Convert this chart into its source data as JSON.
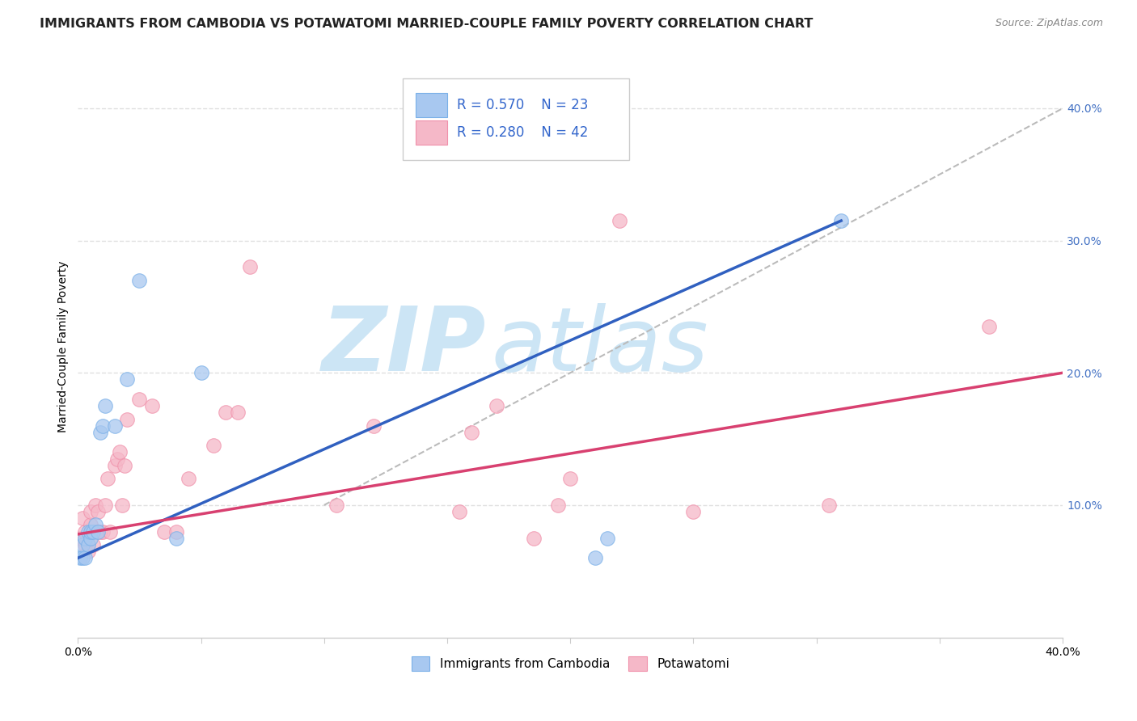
{
  "title": "IMMIGRANTS FROM CAMBODIA VS POTAWATOMI MARRIED-COUPLE FAMILY POVERTY CORRELATION CHART",
  "source": "Source: ZipAtlas.com",
  "ylabel": "Married-Couple Family Poverty",
  "xlim": [
    0,
    0.4
  ],
  "ylim": [
    0,
    0.44
  ],
  "yticks": [
    0.1,
    0.2,
    0.3,
    0.4
  ],
  "ytick_labels": [
    "10.0%",
    "20.0%",
    "30.0%",
    "40.0%"
  ],
  "xticks": [
    0.0,
    0.05,
    0.1,
    0.15,
    0.2,
    0.25,
    0.3,
    0.35,
    0.4
  ],
  "grid_color": "#e0e0e0",
  "background_color": "#ffffff",
  "watermark_line1": "ZIP",
  "watermark_line2": "atlas",
  "watermark_color": "#cce5f5",
  "blue_color": "#a8c8f0",
  "pink_color": "#f5b8c8",
  "blue_edge_color": "#7ab0e8",
  "pink_edge_color": "#f090aa",
  "blue_line_color": "#3060c0",
  "pink_line_color": "#d84070",
  "ref_line_color": "#bbbbbb",
  "blue_scatter_x": [
    0.001,
    0.002,
    0.002,
    0.003,
    0.003,
    0.004,
    0.004,
    0.005,
    0.005,
    0.006,
    0.007,
    0.008,
    0.009,
    0.01,
    0.011,
    0.015,
    0.02,
    0.025,
    0.04,
    0.05,
    0.21,
    0.215,
    0.31
  ],
  "blue_scatter_y": [
    0.06,
    0.06,
    0.07,
    0.06,
    0.075,
    0.07,
    0.08,
    0.075,
    0.08,
    0.08,
    0.085,
    0.08,
    0.155,
    0.16,
    0.175,
    0.16,
    0.195,
    0.27,
    0.075,
    0.2,
    0.06,
    0.075,
    0.315
  ],
  "pink_scatter_x": [
    0.001,
    0.002,
    0.003,
    0.003,
    0.004,
    0.005,
    0.005,
    0.006,
    0.007,
    0.008,
    0.009,
    0.01,
    0.011,
    0.012,
    0.013,
    0.015,
    0.016,
    0.017,
    0.018,
    0.019,
    0.02,
    0.025,
    0.03,
    0.035,
    0.04,
    0.045,
    0.055,
    0.06,
    0.065,
    0.07,
    0.105,
    0.12,
    0.155,
    0.16,
    0.17,
    0.185,
    0.195,
    0.2,
    0.22,
    0.25,
    0.305,
    0.37
  ],
  "pink_scatter_y": [
    0.075,
    0.09,
    0.07,
    0.08,
    0.065,
    0.085,
    0.095,
    0.07,
    0.1,
    0.095,
    0.08,
    0.08,
    0.1,
    0.12,
    0.08,
    0.13,
    0.135,
    0.14,
    0.1,
    0.13,
    0.165,
    0.18,
    0.175,
    0.08,
    0.08,
    0.12,
    0.145,
    0.17,
    0.17,
    0.28,
    0.1,
    0.16,
    0.095,
    0.155,
    0.175,
    0.075,
    0.1,
    0.12,
    0.315,
    0.095,
    0.1,
    0.235
  ],
  "blue_line_x0": 0.0,
  "blue_line_x1": 0.31,
  "blue_line_y0": 0.06,
  "blue_line_y1": 0.315,
  "pink_line_x0": 0.0,
  "pink_line_x1": 0.4,
  "pink_line_y0": 0.078,
  "pink_line_y1": 0.2,
  "ref_line_x0": 0.1,
  "ref_line_x1": 0.4,
  "ref_line_y0": 0.1,
  "ref_line_y1": 0.4,
  "title_fontsize": 11.5,
  "source_fontsize": 9,
  "axis_label_fontsize": 10,
  "tick_fontsize": 10,
  "scatter_size": 160,
  "scatter_alpha": 0.75
}
